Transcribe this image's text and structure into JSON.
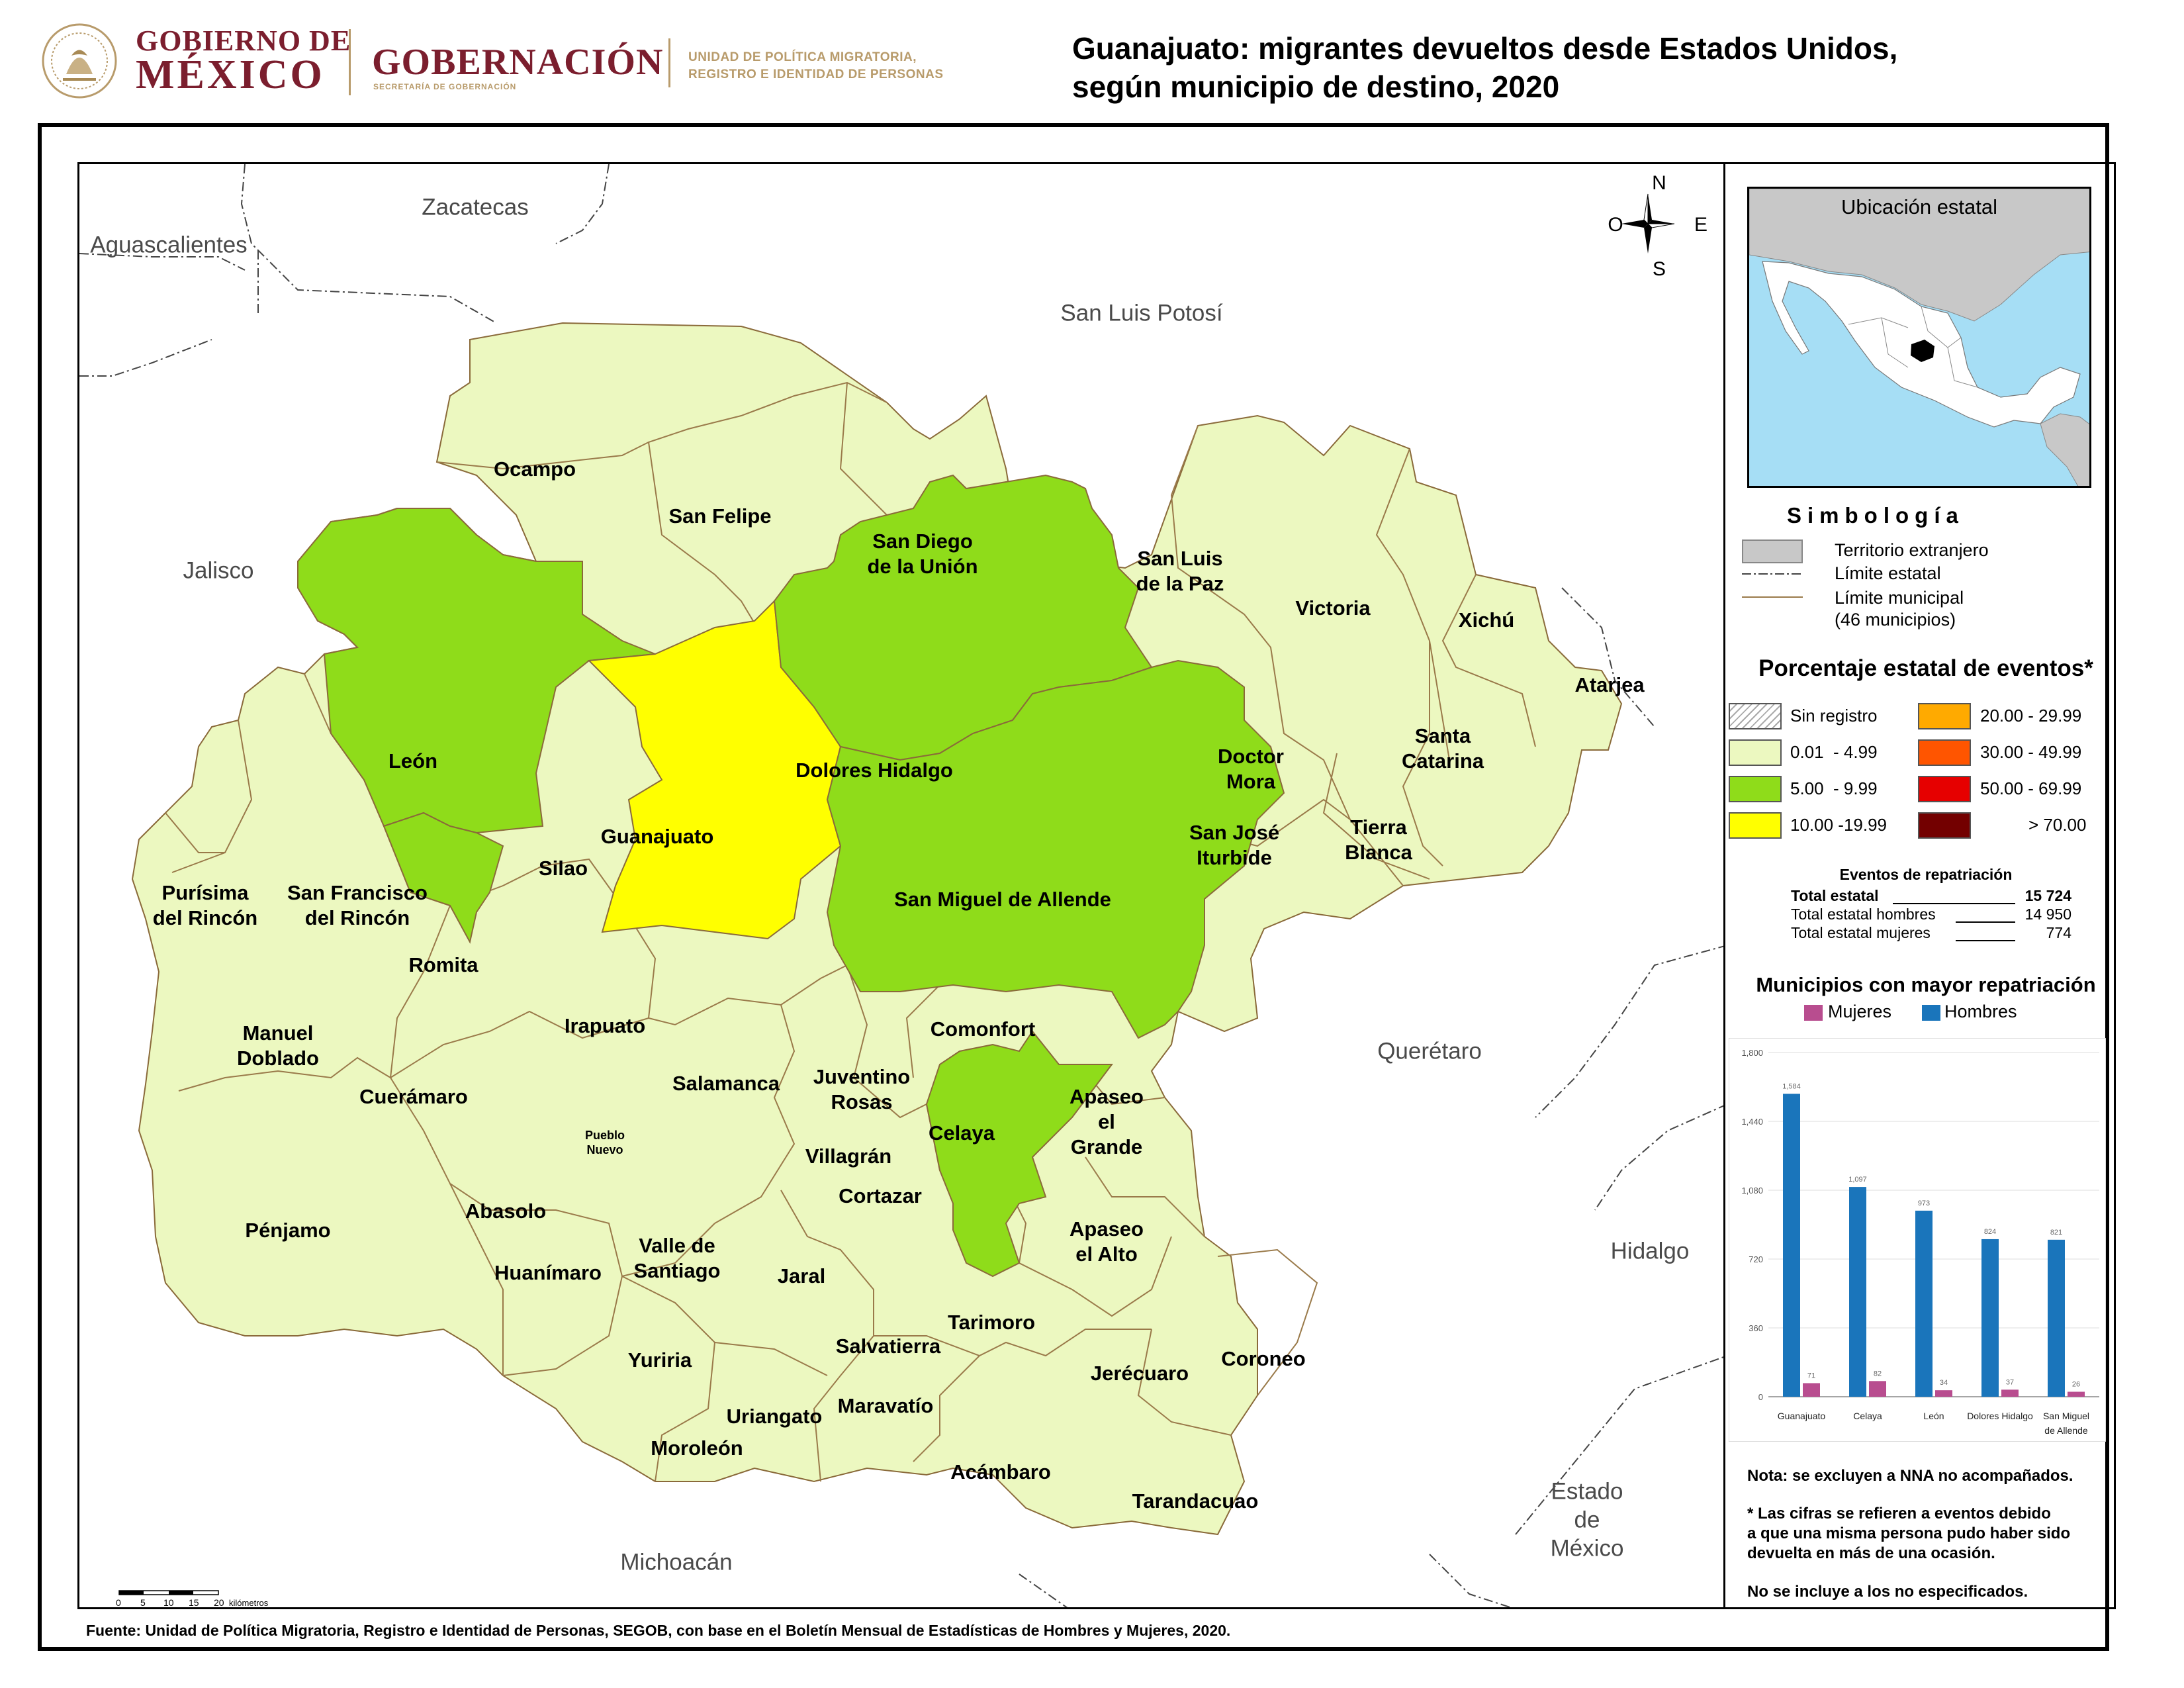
{
  "header": {
    "gobierno_line1": "GOBIERNO DE",
    "gobierno_line2": "MÉXICO",
    "gobernacion": "GOBERNACIÓN",
    "gobernacion_sub": "SECRETARÍA DE GOBERNACIÓN",
    "unidad_line1": "UNIDAD DE POLÍTICA MIGRATORIA,",
    "unidad_line2": "REGISTRO E IDENTIDAD DE PERSONAS",
    "title_line1": "Guanajuato: migrantes devueltos desde Estados Unidos,",
    "title_line2": "según municipio de destino, 2020"
  },
  "map": {
    "neighbor_states": [
      {
        "name": "Zacatecas"
      },
      {
        "name": "Aguascalientes"
      },
      {
        "name": "San Luis Potosí"
      },
      {
        "name": "Jalisco"
      },
      {
        "name": "Querétaro"
      },
      {
        "name": "Hidalgo"
      },
      {
        "name": "Michoacán"
      },
      {
        "name": "Estado de México"
      }
    ],
    "municipalities": [
      {
        "name": "Ocampo",
        "class": "0.01 - 4.99"
      },
      {
        "name": "San Felipe",
        "class": "0.01 - 4.99"
      },
      {
        "name": "San Diego de la Unión",
        "class": "0.01 - 4.99"
      },
      {
        "name": "San Luis de la Paz",
        "class": "0.01 - 4.99"
      },
      {
        "name": "Victoria",
        "class": "0.01 - 4.99"
      },
      {
        "name": "Xichú",
        "class": "0.01 - 4.99"
      },
      {
        "name": "Atarjea",
        "class": "0.01 - 4.99"
      },
      {
        "name": "León",
        "class": "5.00 - 9.99"
      },
      {
        "name": "Guanajuato",
        "class": "10.00 -19.99"
      },
      {
        "name": "Dolores Hidalgo",
        "class": "5.00 - 9.99"
      },
      {
        "name": "Doctor Mora",
        "class": "0.01 - 4.99"
      },
      {
        "name": "Santa Catarina",
        "class": "0.01 - 4.99"
      },
      {
        "name": "San José Iturbide",
        "class": "0.01 - 4.99"
      },
      {
        "name": "Tierra Blanca",
        "class": "0.01 - 4.99"
      },
      {
        "name": "Silao",
        "class": "0.01 - 4.99"
      },
      {
        "name": "San Miguel de Allende",
        "class": "5.00 - 9.99"
      },
      {
        "name": "Purísima del Rincón",
        "class": "0.01 - 4.99"
      },
      {
        "name": "San Francisco del Rincón",
        "class": "5.00 - 9.99"
      },
      {
        "name": "Romita",
        "class": "0.01 - 4.99"
      },
      {
        "name": "Manuel Doblado",
        "class": "0.01 - 4.99"
      },
      {
        "name": "Irapuato",
        "class": "0.01 - 4.99"
      },
      {
        "name": "Comonfort",
        "class": "0.01 - 4.99"
      },
      {
        "name": "Cuerámaro",
        "class": "0.01 - 4.99"
      },
      {
        "name": "Salamanca",
        "class": "0.01 - 4.99"
      },
      {
        "name": "Juventino Rosas",
        "class": "0.01 - 4.99"
      },
      {
        "name": "Apaseo el Grande",
        "class": "0.01 - 4.99"
      },
      {
        "name": "Celaya",
        "class": "5.00 - 9.99"
      },
      {
        "name": "Pueblo Nuevo",
        "class": "0.01 - 4.99"
      },
      {
        "name": "Villagrán",
        "class": "0.01 - 4.99"
      },
      {
        "name": "Cortazar",
        "class": "0.01 - 4.99"
      },
      {
        "name": "Abasolo",
        "class": "0.01 - 4.99"
      },
      {
        "name": "Pénjamo",
        "class": "0.01 - 4.99"
      },
      {
        "name": "Valle de Santiago",
        "class": "0.01 - 4.99"
      },
      {
        "name": "Apaseo el Alto",
        "class": "0.01 - 4.99"
      },
      {
        "name": "Huanímaro",
        "class": "0.01 - 4.99"
      },
      {
        "name": "Jaral",
        "class": "0.01 - 4.99"
      },
      {
        "name": "Tarimoro",
        "class": "0.01 - 4.99"
      },
      {
        "name": "Salvatierra",
        "class": "0.01 - 4.99"
      },
      {
        "name": "Yuriria",
        "class": "0.01 - 4.99"
      },
      {
        "name": "Coroneo",
        "class": "0.01 - 4.99"
      },
      {
        "name": "Jerécuaro",
        "class": "0.01 - 4.99"
      },
      {
        "name": "Maravatío",
        "class": "0.01 - 4.99"
      },
      {
        "name": "Uriangato",
        "class": "0.01 - 4.99"
      },
      {
        "name": "Moroleón",
        "class": "0.01 - 4.99"
      },
      {
        "name": "Acámbaro",
        "class": "0.01 - 4.99"
      },
      {
        "name": "Tarandacuao",
        "class": "0.01 - 4.99"
      }
    ],
    "compass": {
      "n": "N",
      "s": "S",
      "e": "E",
      "w": "O"
    },
    "scale": {
      "ticks": [
        "0",
        "5",
        "10",
        "15",
        "20"
      ],
      "unit": "kilómetros"
    }
  },
  "sidebar": {
    "location_title": "Ubicación estatal",
    "simbologia_title": "Simbología",
    "legend_items": [
      {
        "label": "Territorio extranjero"
      },
      {
        "label": "Límite estatal"
      },
      {
        "label": "Límite municipal"
      },
      {
        "label": "(46 municipios)"
      }
    ],
    "pct_title": "Porcentaje estatal de eventos*",
    "classes": [
      {
        "label": "Sin registro",
        "color": "#ffffff"
      },
      {
        "label": "0.01  - 4.99",
        "color": "#ecf8c0"
      },
      {
        "label": "5.00  - 9.99",
        "color": "#8fdc1a"
      },
      {
        "label": "10.00 -19.99",
        "color": "#ffff00"
      },
      {
        "label": "20.00 - 29.99",
        "color": "#ffaa00"
      },
      {
        "label": "30.00 - 49.99",
        "color": "#ff5500"
      },
      {
        "label": "50.00 - 69.99",
        "color": "#e60000"
      },
      {
        "label": "> 70.00",
        "color": "#730000"
      }
    ],
    "events_title": "Eventos de repatriación",
    "events": [
      {
        "label": "Total estatal",
        "value": "15 724"
      },
      {
        "label": "Total estatal hombres",
        "value": "14 950"
      },
      {
        "label": "Total estatal mujeres",
        "value": "774"
      }
    ],
    "chart_title": "Municipios con mayor repatriación",
    "notes": [
      "Nota: se excluyen a NNA no acompañados.",
      "* Las cifras se refieren a eventos debido",
      "a que una misma persona pudo haber sido",
      "devuelta en más de una ocasión.",
      "No se incluye a los no especificados."
    ]
  },
  "chart_data": {
    "type": "bar",
    "title": "Municipios con mayor repatriación",
    "categories": [
      "Guanajuato",
      "Celaya",
      "León",
      "Dolores Hidalgo",
      "San Miguel de Allende"
    ],
    "series": [
      {
        "name": "Hombres",
        "values": [
          1584,
          1097,
          973,
          824,
          821
        ],
        "color": "#1a75bb"
      },
      {
        "name": "Mujeres",
        "values": [
          71,
          82,
          34,
          37,
          26
        ],
        "color": "#b84d8f"
      }
    ],
    "yticks": [
      "0",
      "360",
      "720",
      "1,080",
      "1,440",
      "1,800"
    ],
    "ylim": [
      0,
      1800
    ],
    "legend": "top"
  },
  "footer": {
    "source": "Fuente: Unidad de Política Migratoria, Registro e Identidad de Personas, SEGOB, con base en el Boletín Mensual de Estadísticas de Hombres y Mujeres, 2020."
  }
}
